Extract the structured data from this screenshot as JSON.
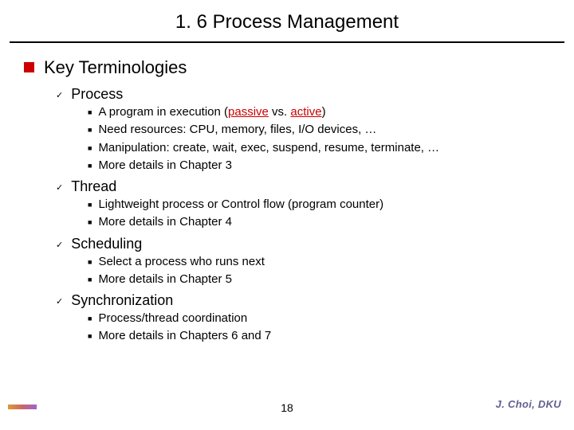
{
  "title": "1. 6 Process Management",
  "section": "Key Terminologies",
  "items": [
    {
      "label": "Process",
      "points": [
        {
          "html": "A program in execution (<span class='red underline'>passive</span> vs. <span class='red underline'>active</span>)"
        },
        {
          "text": "Need resources: CPU, memory, files, I/O devices, …"
        },
        {
          "text": "Manipulation: create, wait, exec, suspend, resume, terminate, …"
        },
        {
          "text": "More details in Chapter 3"
        }
      ]
    },
    {
      "label": "Thread",
      "points": [
        {
          "text": "Lightweight process or Control flow (program counter)"
        },
        {
          "text": "More details in Chapter 4"
        }
      ]
    },
    {
      "label": "Scheduling",
      "points": [
        {
          "text": "Select a process who runs next"
        },
        {
          "text": "More details in Chapter 5"
        }
      ]
    },
    {
      "label": "Synchronization",
      "points": [
        {
          "text": "Process/thread coordination"
        },
        {
          "text": "More details in Chapters 6 and 7"
        }
      ]
    }
  ],
  "page_number": "18",
  "footer_author": "J. Choi, DKU",
  "colors": {
    "bullet_square": "#cc0000",
    "text": "#000000",
    "background": "#ffffff",
    "footer_author_color": "#606090"
  }
}
